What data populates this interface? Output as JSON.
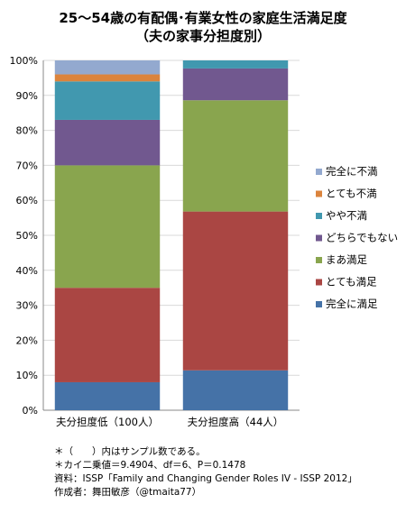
{
  "chart_data": {
    "type": "bar",
    "stacked": true,
    "title": "25～54歳の有配偶･有業女性の家庭生活満足度",
    "subtitle": "（夫の家事分担度別）",
    "categories": [
      "夫分担度低（100人）",
      "夫分担度高（44人）"
    ],
    "ylim": [
      0,
      100
    ],
    "y_ticks": [
      "0%",
      "10%",
      "20%",
      "30%",
      "40%",
      "50%",
      "60%",
      "70%",
      "80%",
      "90%",
      "100%"
    ],
    "grid": true,
    "legend_position": "right",
    "series": [
      {
        "name": "完全に満足",
        "color": "#4572A7",
        "values": [
          8,
          11.4
        ]
      },
      {
        "name": "とても満足",
        "color": "#AA4643",
        "values": [
          27,
          45.4
        ]
      },
      {
        "name": "まあ満足",
        "color": "#89A54E",
        "values": [
          35,
          31.8
        ]
      },
      {
        "name": "どちらでもない",
        "color": "#71588F",
        "values": [
          13,
          9.1
        ]
      },
      {
        "name": "やや不満",
        "color": "#4198AF",
        "values": [
          11,
          2.3
        ]
      },
      {
        "name": "とても不満",
        "color": "#DB843D",
        "values": [
          2,
          0
        ]
      },
      {
        "name": "完全に不満",
        "color": "#93A9CF",
        "values": [
          4,
          0
        ]
      }
    ]
  },
  "notes": [
    "＊（　　）内はサンプル数である。",
    "＊カイ二乗値＝9.4904、df＝6、P＝0.1478",
    "資料：ISSP「Family and Changing Gender Roles IV - ISSP 2012」",
    "作成者：舞田敏彦（@tmaita77）"
  ]
}
